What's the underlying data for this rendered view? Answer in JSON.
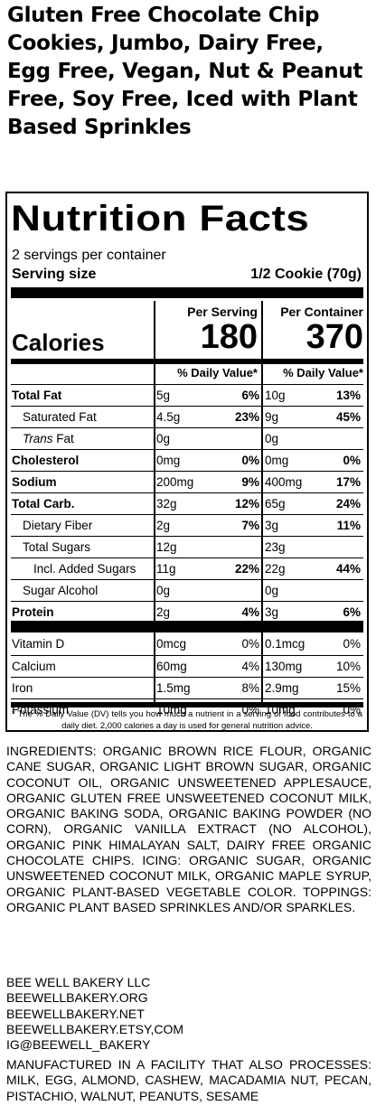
{
  "product_title": "Gluten Free Chocolate Chip Cookies, Jumbo, Dairy Free, Egg Free, Vegan, Nut & Peanut Free, Soy Free, Iced with Plant Based Sprinkles",
  "label": {
    "heading": "Nutrition Facts",
    "servings_per_container": "2 servings per container",
    "serving_size_label": "Serving size",
    "serving_size_value": "1/2 Cookie (70g)",
    "col_per_serving": "Per Serving",
    "col_per_container": "Per Container",
    "calories_label": "Calories",
    "calories_serving": "180",
    "calories_container": "370",
    "dv_header": "% Daily Value*",
    "nutrients": [
      {
        "name": "Total Fat",
        "s_amt": "5g",
        "s_dv": "6%",
        "c_amt": "10g",
        "c_dv": "13%"
      },
      {
        "name": "Saturated Fat",
        "s_amt": "4.5g",
        "s_dv": "23%",
        "c_amt": "9g",
        "c_dv": "45%"
      },
      {
        "name_italic": "Trans",
        "name": " Fat",
        "s_amt": "0g",
        "s_dv": "",
        "c_amt": "0g",
        "c_dv": ""
      },
      {
        "name": "Cholesterol",
        "s_amt": "0mg",
        "s_dv": "0%",
        "c_amt": "0mg",
        "c_dv": "0%"
      },
      {
        "name": "Sodium",
        "s_amt": "200mg",
        "s_dv": "9%",
        "c_amt": "400mg",
        "c_dv": "17%"
      },
      {
        "name": "Total Carb.",
        "s_amt": "32g",
        "s_dv": "12%",
        "c_amt": "65g",
        "c_dv": "24%"
      },
      {
        "name": "Dietary Fiber",
        "s_amt": "2g",
        "s_dv": "7%",
        "c_amt": "3g",
        "c_dv": "11%"
      },
      {
        "name": "Total Sugars",
        "s_amt": "12g",
        "s_dv": "",
        "c_amt": "23g",
        "c_dv": ""
      },
      {
        "name": "Incl. Added Sugars",
        "s_amt": "11g",
        "s_dv": "22%",
        "c_amt": "22g",
        "c_dv": "44%"
      },
      {
        "name": "Sugar Alcohol",
        "s_amt": "0g",
        "s_dv": "",
        "c_amt": "0g",
        "c_dv": ""
      },
      {
        "name": "Protein",
        "s_amt": "2g",
        "s_dv": "4%",
        "c_amt": "3g",
        "c_dv": "6%"
      }
    ],
    "vitamins": [
      {
        "name": "Vitamin D",
        "s_amt": "0mcg",
        "s_dv": "0%",
        "c_amt": "0.1mcg",
        "c_dv": "0%"
      },
      {
        "name": "Calcium",
        "s_amt": "60mg",
        "s_dv": "4%",
        "c_amt": "130mg",
        "c_dv": "10%"
      },
      {
        "name": "Iron",
        "s_amt": "1.5mg",
        "s_dv": "8%",
        "c_amt": "2.9mg",
        "c_dv": "15%"
      },
      {
        "name": "Potassium",
        "s_amt": "10mg",
        "s_dv": "0%",
        "c_amt": "10mg",
        "c_dv": "0%"
      }
    ],
    "footnote": "* The % Daily Value (DV) tells you how much a nutrient in a serving of food contributes to a daily diet. 2,000 calories a day is used for general nutrition advice."
  },
  "ingredients": "INGREDIENTS: ORGANIC BROWN RICE FLOUR, ORGANIC CANE SUGAR, ORGANIC LIGHT BROWN SUGAR, ORGANIC COCONUT OIL, ORGANIC UNSWEETENED APPLESAUCE, ORGANIC GLUTEN FREE UNSWEETENED COCONUT MILK, ORGANIC BAKING SODA, ORGANIC BAKING POWDER (NO CORN), ORGANIC VANILLA EXTRACT (NO ALCOHOL), ORGANIC PINK HIMALAYAN SALT, DAIRY FREE ORGANIC CHOCOLATE CHIPS. ICING: ORGANIC SUGAR, ORGANIC UNSWEETENED COCONUT MILK, ORGANIC MAPLE SYRUP, ORGANIC PLANT-BASED VEGETABLE COLOR. TOPPINGS: ORGANIC PLANT BASED SPRINKLES AND/OR SPARKLES.",
  "company_lines": [
    "BEE WELL BAKERY LLC",
    "BEEWELLBAKERY.ORG",
    "BEEWELLBAKERY.NET",
    "BEEWELLBAKERY.ETSY,COM",
    "IG@BEEWELL_BAKERY"
  ],
  "allergen_statement": "MANUFACTURED IN A FACILITY THAT ALSO PROCESSES: MILK, EGG, ALMOND, CASHEW, MACADAMIA NUT, PECAN, PISTACHIO, WALNUT, PEANUTS, SESAME"
}
